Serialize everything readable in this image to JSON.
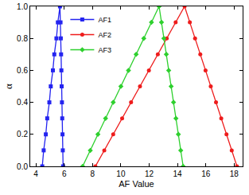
{
  "chart_data": {
    "type": "line",
    "x_label": "AF Value",
    "y_label": "α",
    "xlim": [
      3.6,
      18.6
    ],
    "xticks": [
      4,
      6,
      8,
      10,
      12,
      14,
      16,
      18
    ],
    "ylim": [
      0,
      1.0
    ],
    "yticks": [
      {
        "value": 0,
        "label": "0.0"
      },
      {
        "value": 0.2,
        "label": "0.2"
      },
      {
        "value": 0.4,
        "label": "0.4"
      },
      {
        "value": 0.6,
        "label": "0.6"
      },
      {
        "value": 0.8,
        "label": "0.8"
      },
      {
        "value": 1.0,
        "label": "1.0"
      }
    ],
    "grid": false,
    "legend": "upper left",
    "series": [
      {
        "name": "AF1",
        "color": "#2424f0",
        "marker": "square",
        "line_style": "solid",
        "x": [
          4.45,
          4.55,
          4.7,
          4.8,
          4.95,
          5.05,
          5.2,
          5.3,
          5.45,
          5.55,
          5.7,
          5.74,
          5.76,
          5.78,
          5.8,
          5.82,
          5.84,
          5.86,
          5.88,
          5.9,
          5.92
        ],
        "values": [
          0,
          0.1,
          0.2,
          0.3,
          0.4,
          0.5,
          0.6,
          0.7,
          0.8,
          0.9,
          1.0,
          0.9,
          0.8,
          0.7,
          0.6,
          0.5,
          0.4,
          0.3,
          0.2,
          0.1,
          0
        ]
      },
      {
        "name": "AF2",
        "color": "#ee1c1c",
        "marker": "circle",
        "line_style": "solid",
        "x": [
          8.2,
          8.83,
          9.46,
          10.09,
          10.72,
          11.35,
          11.98,
          12.61,
          13.24,
          13.87,
          14.5,
          14.87,
          15.24,
          15.61,
          15.98,
          16.35,
          16.72,
          17.09,
          17.46,
          17.83,
          18.2
        ],
        "values": [
          0,
          0.1,
          0.2,
          0.3,
          0.4,
          0.5,
          0.6,
          0.7,
          0.8,
          0.9,
          1.0,
          0.9,
          0.8,
          0.7,
          0.6,
          0.5,
          0.4,
          0.3,
          0.2,
          0.1,
          0
        ]
      },
      {
        "name": "AF3",
        "color": "#2ed02e",
        "marker": "diamond",
        "line_style": "solid",
        "x": [
          7.3,
          7.84,
          8.38,
          8.92,
          9.46,
          10.0,
          10.54,
          11.08,
          11.62,
          12.16,
          12.7,
          12.87,
          13.04,
          13.21,
          13.38,
          13.55,
          13.72,
          13.89,
          14.06,
          14.23,
          14.4
        ],
        "values": [
          0,
          0.1,
          0.2,
          0.3,
          0.4,
          0.5,
          0.6,
          0.7,
          0.8,
          0.9,
          1.0,
          0.9,
          0.8,
          0.7,
          0.6,
          0.5,
          0.4,
          0.3,
          0.2,
          0.1,
          0
        ]
      }
    ]
  }
}
